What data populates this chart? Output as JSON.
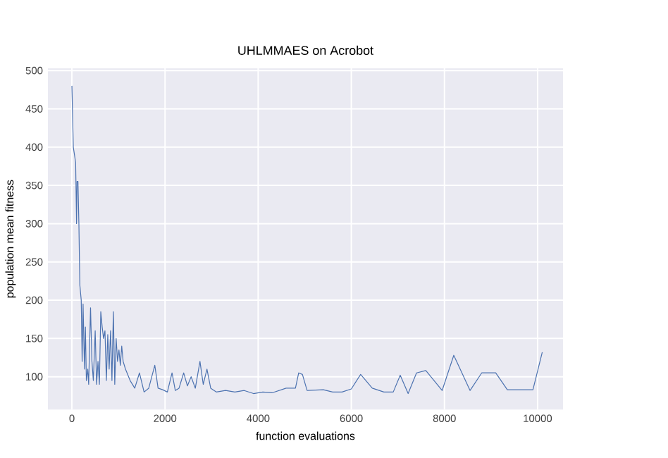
{
  "chart_data": {
    "type": "line",
    "title": "UHLMMAES on Acrobot",
    "xlabel": "function evaluations",
    "ylabel": "population mean fitness",
    "x": [
      0,
      30,
      80,
      100,
      110,
      130,
      150,
      170,
      200,
      220,
      240,
      270,
      290,
      310,
      340,
      360,
      400,
      430,
      460,
      500,
      530,
      560,
      590,
      620,
      650,
      680,
      710,
      740,
      770,
      800,
      830,
      860,
      890,
      920,
      950,
      980,
      1010,
      1040,
      1070,
      1100,
      1150,
      1250,
      1350,
      1450,
      1550,
      1650,
      1780,
      1850,
      1950,
      2050,
      2150,
      2220,
      2300,
      2400,
      2480,
      2560,
      2650,
      2750,
      2820,
      2900,
      2980,
      3100,
      3300,
      3500,
      3700,
      3900,
      4100,
      4300,
      4600,
      4800,
      4870,
      4950,
      5050,
      5400,
      5600,
      5800,
      6000,
      6200,
      6450,
      6700,
      6900,
      7050,
      7220,
      7400,
      7600,
      7950,
      8200,
      8550,
      8800,
      9100,
      9350,
      9900,
      10100
    ],
    "values": [
      480,
      400,
      380,
      300,
      355,
      355,
      300,
      220,
      200,
      120,
      195,
      110,
      165,
      95,
      110,
      90,
      190,
      120,
      95,
      160,
      90,
      120,
      90,
      185,
      165,
      150,
      160,
      95,
      155,
      110,
      160,
      95,
      185,
      90,
      150,
      120,
      135,
      115,
      140,
      120,
      110,
      95,
      85,
      105,
      80,
      85,
      115,
      85,
      83,
      80,
      105,
      82,
      85,
      105,
      88,
      100,
      85,
      120,
      90,
      110,
      85,
      80,
      82,
      80,
      82,
      78,
      80,
      79,
      85,
      85,
      105,
      103,
      82,
      83,
      80,
      80,
      84,
      103,
      85,
      80,
      80,
      102,
      78,
      105,
      108,
      82,
      128,
      82,
      105,
      105,
      83,
      83,
      132
    ],
    "color": "#4c72b0",
    "xlim": [
      -515,
      10545
    ],
    "ylim": [
      57,
      503
    ],
    "xticks": [
      0,
      2000,
      4000,
      6000,
      8000,
      10000
    ],
    "yticks": [
      100,
      150,
      200,
      250,
      300,
      350,
      400,
      450,
      500
    ],
    "grid": true,
    "marker": "none",
    "line_style": "solid"
  }
}
